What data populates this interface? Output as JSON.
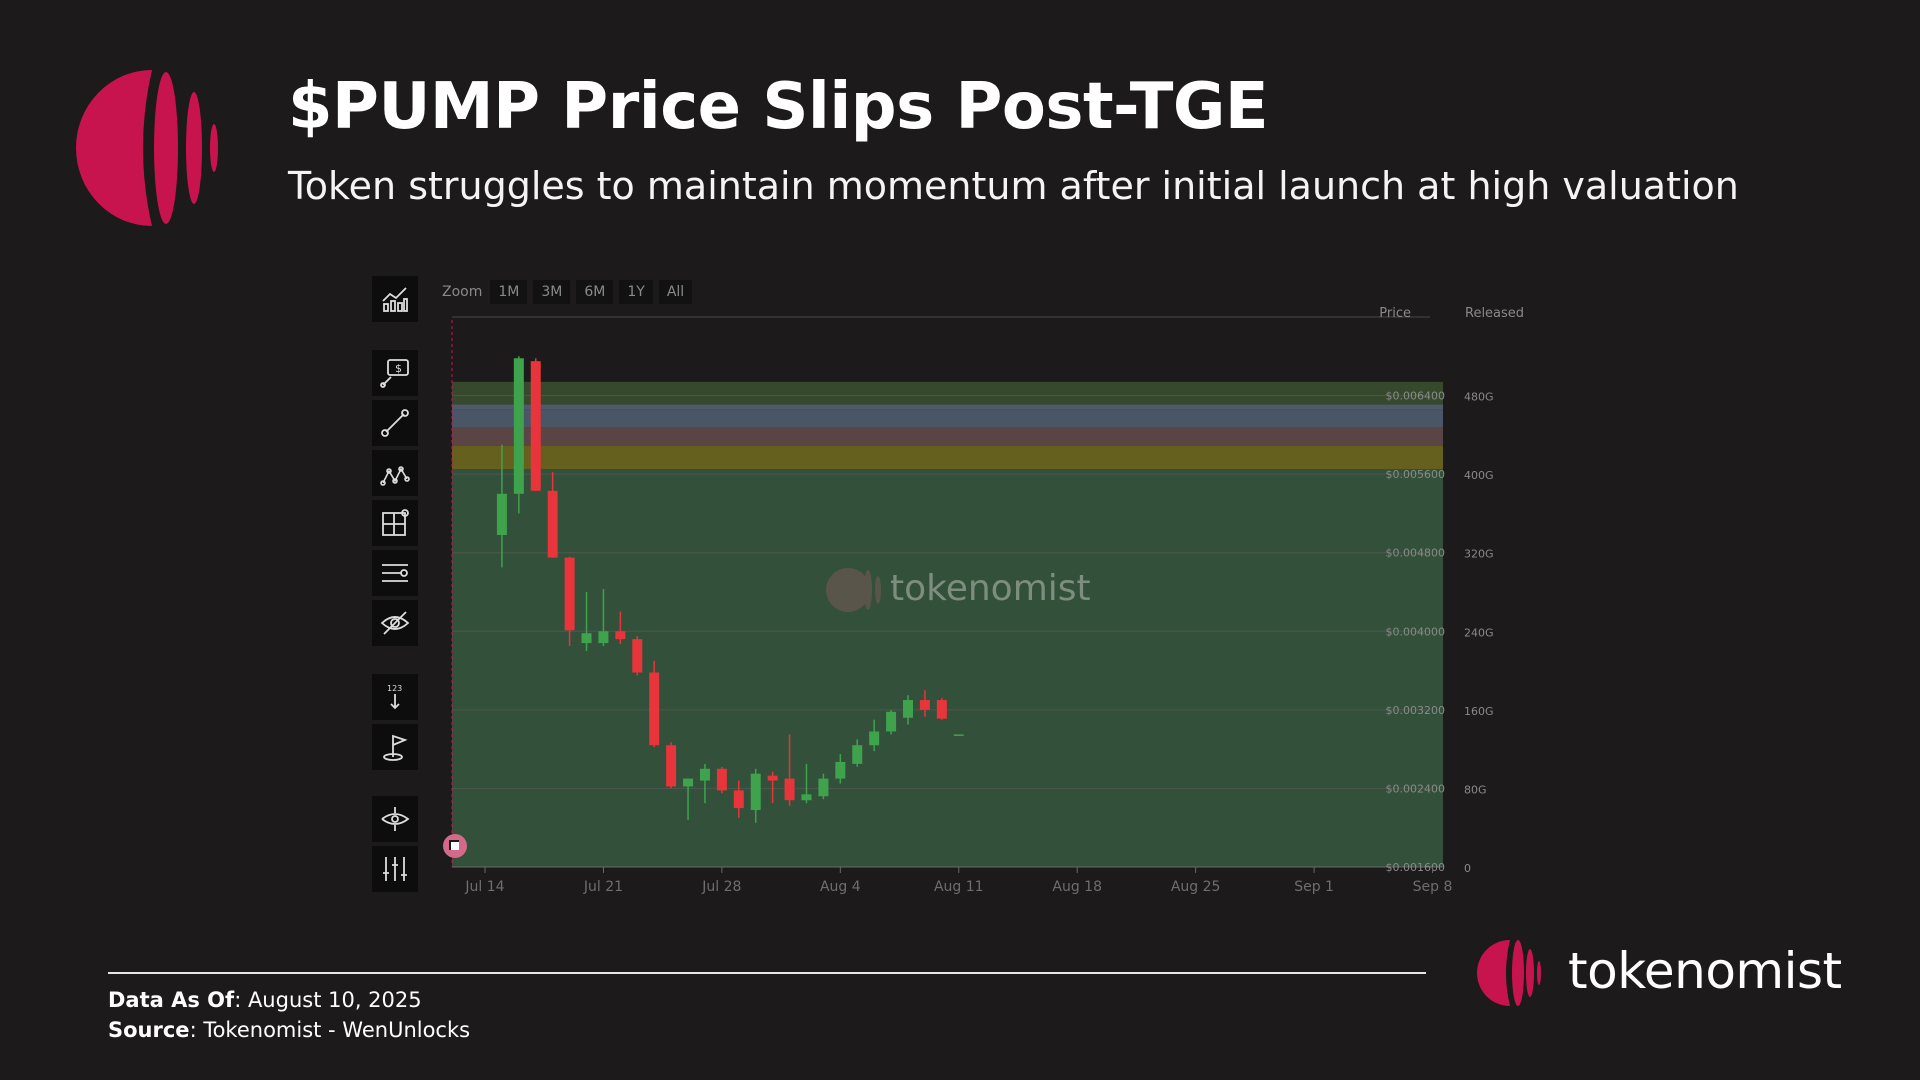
{
  "header": {
    "title": "$PUMP Price Slips Post-TGE",
    "subtitle": "Token struggles to maintain momentum after initial launch at high valuation"
  },
  "colors": {
    "accent": "#c8144e",
    "background": "#1c1a1b",
    "up_candle": "#3fa34d",
    "down_candle": "#e8343b",
    "band_green": "#33503a"
  },
  "toolbar": {
    "tools": [
      "chart-type-icon",
      "price-alert-icon",
      "trend-line-icon",
      "pattern-icon",
      "layout-grid-icon",
      "indicator-lines-icon",
      "hide-icon",
      "number-marker-icon",
      "flag-marker-icon",
      "crosshair-icon",
      "settings-sliders-icon"
    ]
  },
  "zoom": {
    "label": "Zoom",
    "options": [
      "1M",
      "3M",
      "6M",
      "1Y",
      "All"
    ]
  },
  "watermark": "tokenomist",
  "chart_data": {
    "type": "candlestick",
    "price_label": "Price",
    "released_label": "Released",
    "x_ticks": [
      "Jul 14",
      "Jul 21",
      "Jul 28",
      "Aug 4",
      "Aug 11",
      "Aug 18",
      "Aug 25",
      "Sep 1",
      "Sep 8"
    ],
    "y_ticks_price": [
      "$0.006400",
      "$0.005600",
      "$0.004800",
      "$0.004000",
      "$0.003200",
      "$0.002400",
      "$0.001600"
    ],
    "y_ticks_released": [
      "480G",
      "400G",
      "320G",
      "240G",
      "160G",
      "80G",
      "0"
    ],
    "price_range": [
      0.0016,
      0.0072
    ],
    "released_bands": [
      {
        "from": 0,
        "to": 405,
        "color": "#33503a"
      },
      {
        "from": 405,
        "to": 429,
        "color": "#66601f"
      },
      {
        "from": 429,
        "to": 448,
        "color": "#5a4444"
      },
      {
        "from": 448,
        "to": 466,
        "color": "#4a5565"
      },
      {
        "from": 466,
        "to": 471,
        "color": "#4e5a6a"
      },
      {
        "from": 471,
        "to": 494,
        "color": "#36492c"
      }
    ],
    "candles": [
      {
        "date": "Jul 15",
        "o": 0.00498,
        "h": 0.0059,
        "l": 0.00465,
        "c": 0.0054
      },
      {
        "date": "Jul 16",
        "o": 0.0054,
        "h": 0.0068,
        "l": 0.0052,
        "c": 0.00678
      },
      {
        "date": "Jul 17",
        "o": 0.00675,
        "h": 0.00678,
        "l": 0.00545,
        "c": 0.00543
      },
      {
        "date": "Jul 18",
        "o": 0.00543,
        "h": 0.00562,
        "l": 0.00475,
        "c": 0.00475
      },
      {
        "date": "Jul 19",
        "o": 0.00475,
        "h": 0.00476,
        "l": 0.00385,
        "c": 0.00401
      },
      {
        "date": "Jul 20",
        "o": 0.00388,
        "h": 0.0044,
        "l": 0.0038,
        "c": 0.00398
      },
      {
        "date": "Jul 21",
        "o": 0.00388,
        "h": 0.00443,
        "l": 0.00385,
        "c": 0.004
      },
      {
        "date": "Jul 22",
        "o": 0.004,
        "h": 0.0042,
        "l": 0.00387,
        "c": 0.00392
      },
      {
        "date": "Jul 23",
        "o": 0.00392,
        "h": 0.00395,
        "l": 0.00355,
        "c": 0.00358
      },
      {
        "date": "Jul 24",
        "o": 0.00358,
        "h": 0.0037,
        "l": 0.00282,
        "c": 0.00284
      },
      {
        "date": "Jul 25",
        "o": 0.00284,
        "h": 0.00287,
        "l": 0.0024,
        "c": 0.00242
      },
      {
        "date": "Jul 26",
        "o": 0.00242,
        "h": 0.0025,
        "l": 0.00208,
        "c": 0.0025
      },
      {
        "date": "Jul 27",
        "o": 0.00248,
        "h": 0.00265,
        "l": 0.00225,
        "c": 0.0026
      },
      {
        "date": "Jul 28",
        "o": 0.0026,
        "h": 0.00262,
        "l": 0.00235,
        "c": 0.00238
      },
      {
        "date": "Jul 29",
        "o": 0.00238,
        "h": 0.00248,
        "l": 0.0021,
        "c": 0.0022
      },
      {
        "date": "Jul 30",
        "o": 0.00218,
        "h": 0.0026,
        "l": 0.00205,
        "c": 0.00255
      },
      {
        "date": "Jul 31",
        "o": 0.00253,
        "h": 0.00257,
        "l": 0.00225,
        "c": 0.00248
      },
      {
        "date": "Aug 1",
        "o": 0.0025,
        "h": 0.00295,
        "l": 0.00222,
        "c": 0.00228
      },
      {
        "date": "Aug 2",
        "o": 0.00228,
        "h": 0.00265,
        "l": 0.00225,
        "c": 0.00234
      },
      {
        "date": "Aug 3",
        "o": 0.00232,
        "h": 0.00255,
        "l": 0.00229,
        "c": 0.0025
      },
      {
        "date": "Aug 4",
        "o": 0.0025,
        "h": 0.00275,
        "l": 0.00245,
        "c": 0.00267
      },
      {
        "date": "Aug 5",
        "o": 0.00265,
        "h": 0.0029,
        "l": 0.00262,
        "c": 0.00284
      },
      {
        "date": "Aug 6",
        "o": 0.00284,
        "h": 0.0031,
        "l": 0.00278,
        "c": 0.00298
      },
      {
        "date": "Aug 7",
        "o": 0.00298,
        "h": 0.0032,
        "l": 0.00295,
        "c": 0.00318
      },
      {
        "date": "Aug 8",
        "o": 0.00312,
        "h": 0.00335,
        "l": 0.00305,
        "c": 0.0033
      },
      {
        "date": "Aug 9",
        "o": 0.0033,
        "h": 0.0034,
        "l": 0.00313,
        "c": 0.0032
      },
      {
        "date": "Aug 10",
        "o": 0.0033,
        "h": 0.00332,
        "l": 0.0031,
        "c": 0.00311
      },
      {
        "date": "Aug 11",
        "o": 0.00295,
        "h": 0.00295,
        "l": 0.00295,
        "c": 0.00295
      }
    ]
  },
  "footer": {
    "data_as_of_label": "Data As Of",
    "data_as_of_value": ": August 10, 2025",
    "source_label": "Source",
    "source_value": ": Tokenomist - WenUnlocks"
  },
  "brand": {
    "name": "tokenomist"
  }
}
